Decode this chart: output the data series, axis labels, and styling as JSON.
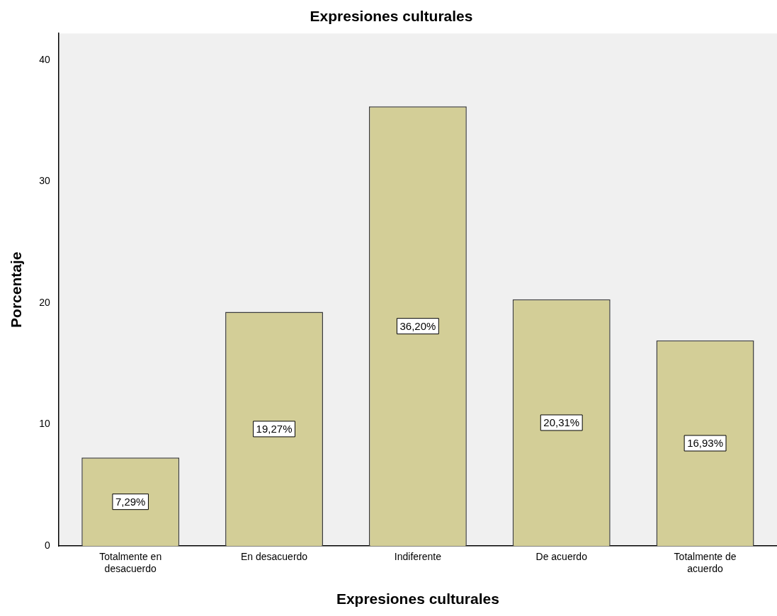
{
  "chart_data": {
    "type": "bar",
    "title": "Expresiones culturales",
    "xlabel": "Expresiones culturales",
    "ylabel": "Porcentaje",
    "categories": [
      "Totalmente en desacuerdo",
      "En desacuerdo",
      "Indiferente",
      "De acuerdo",
      "Totalmente de acuerdo"
    ],
    "values": [
      7.29,
      19.27,
      36.2,
      20.31,
      16.93
    ],
    "value_labels": [
      "7,29%",
      "19,27%",
      "36,20%",
      "20,31%",
      "16,93%"
    ],
    "color": "#d3ce97",
    "ylim": [
      0,
      42.2
    ],
    "yticks": [
      0,
      10,
      20,
      30,
      40
    ],
    "grid": false,
    "legend": false
  }
}
